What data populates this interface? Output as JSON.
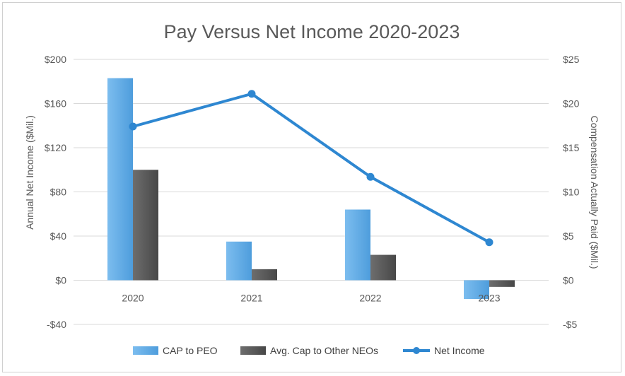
{
  "chart_data": {
    "type": "bar",
    "title": "Pay Versus Net Income 2020-2023",
    "categories": [
      "2020",
      "2021",
      "2022",
      "2023"
    ],
    "y_left": {
      "label": "Annual Net Income ($Mil.)",
      "ylim": [
        -40,
        200
      ],
      "ticks": [
        -40,
        0,
        40,
        80,
        120,
        160,
        200
      ],
      "tick_labels": [
        "-$40",
        "$0",
        "$40",
        "$80",
        "$120",
        "$160",
        "$200"
      ]
    },
    "y_right": {
      "label": "Compensation Actually Paid ($Mil.)",
      "ylim": [
        -5,
        25
      ],
      "ticks": [
        -5,
        0,
        5,
        10,
        15,
        20,
        25
      ],
      "tick_labels": [
        "-$5",
        "$0",
        "$5",
        "$10",
        "$15",
        "$20",
        "$25"
      ]
    },
    "series": [
      {
        "name": "CAP to PEO",
        "type": "bar",
        "axis": "left",
        "color": "#5ea8e2",
        "values": [
          183,
          35,
          64,
          -17
        ]
      },
      {
        "name": "Avg. Cap to Other NEOs",
        "type": "bar",
        "axis": "left",
        "color": "#5a5a5a",
        "values": [
          100,
          10,
          23,
          -6
        ]
      },
      {
        "name": "Net Income",
        "type": "line",
        "axis": "right",
        "color": "#2e87d1",
        "values": [
          17.4,
          21.1,
          11.7,
          4.3
        ]
      }
    ],
    "grid": true,
    "legend_position": "bottom"
  }
}
